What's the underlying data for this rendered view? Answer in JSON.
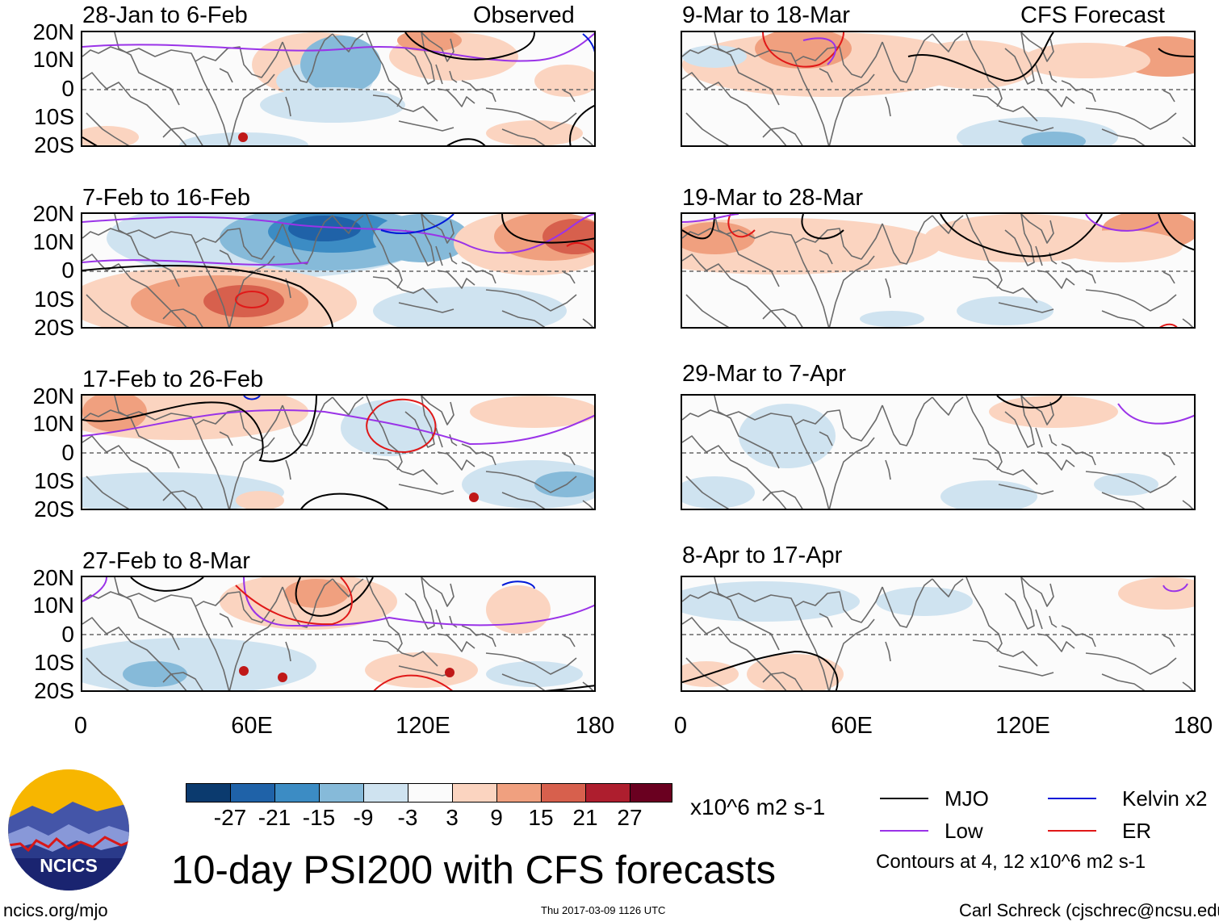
{
  "observed_label": "Observed",
  "forecast_label": "CFS Forecast",
  "observed_panels": [
    {
      "title": "28-Jan to 6-Feb"
    },
    {
      "title": "7-Feb to 16-Feb"
    },
    {
      "title": "17-Feb to 26-Feb"
    },
    {
      "title": "27-Feb to 8-Mar"
    }
  ],
  "forecast_panels": [
    {
      "title": "9-Mar to 18-Mar"
    },
    {
      "title": "19-Mar to 28-Mar"
    },
    {
      "title": "29-Mar to 7-Apr"
    },
    {
      "title": "8-Apr to 17-Apr"
    }
  ],
  "lat_labels": [
    "20N",
    "10N",
    "0",
    "10S",
    "20S"
  ],
  "lon_labels": [
    "0",
    "60E",
    "120E",
    "180"
  ],
  "colorbar": {
    "colors": [
      "#0b3a6e",
      "#1f62a8",
      "#3c8cc4",
      "#86bad9",
      "#cfe3f0",
      "#fbfbfb",
      "#fbd4c0",
      "#f0a07f",
      "#d7604d",
      "#ae1e2e",
      "#6a0020"
    ],
    "ticks": [
      "-27",
      "-21",
      "-15",
      "-9",
      "-3",
      "3",
      "9",
      "15",
      "21",
      "27"
    ],
    "units": "x10^6 m2 s-1"
  },
  "title": "10-day PSI200 with CFS forecasts",
  "legend": {
    "items": [
      {
        "label": "MJO",
        "color": "#000000"
      },
      {
        "label": "Kelvin x2",
        "color": "#0019d8"
      },
      {
        "label": "Low",
        "color": "#9a33e8"
      },
      {
        "label": "ER",
        "color": "#e01818"
      }
    ],
    "note": "Contours at 4, 12 x10^6 m2 s-1"
  },
  "logo_text": "NCICS",
  "footer": {
    "url": "ncics.org/mjo",
    "timestamp": "Thu 2017-03-09 1126 UTC",
    "author": "Carl Schreck (cjschrec@ncsu.edu)"
  }
}
